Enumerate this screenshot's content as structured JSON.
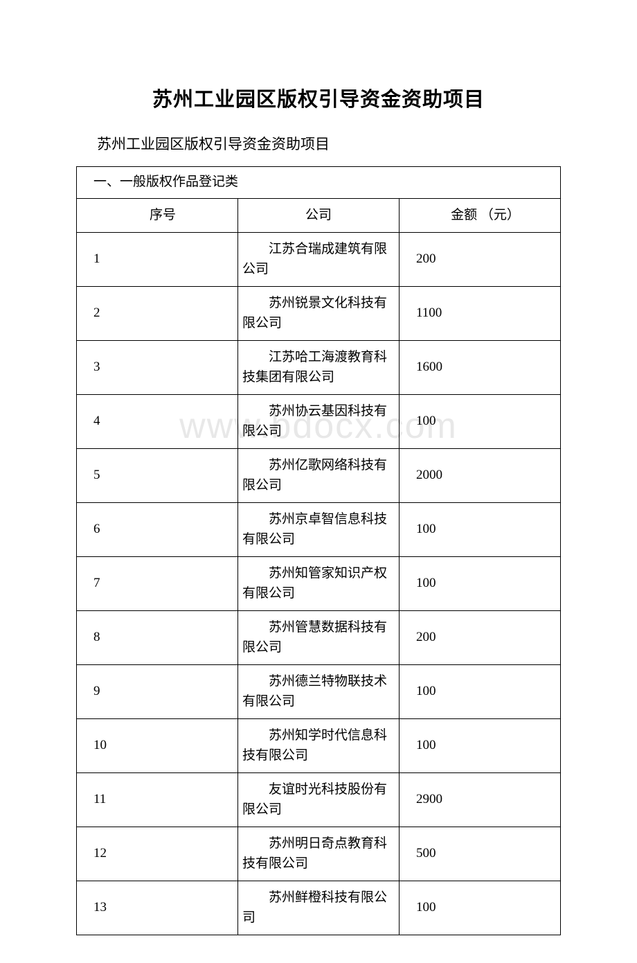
{
  "document": {
    "title": "苏州工业园区版权引导资金资助项目",
    "subtitle": "苏州工业园区版权引导资金资助项目",
    "watermark": "www.bdocx.com"
  },
  "table": {
    "section_title": "一、一般版权作品登记类",
    "headers": {
      "seq": "序号",
      "company": "公司",
      "amount": "金额 （元）"
    },
    "rows": [
      {
        "seq": "1",
        "company": "江苏合瑞成建筑有限公司",
        "amount": "200"
      },
      {
        "seq": "2",
        "company": "苏州锐景文化科技有限公司",
        "amount": "1100"
      },
      {
        "seq": "3",
        "company": "江苏哈工海渡教育科技集团有限公司",
        "amount": "1600"
      },
      {
        "seq": "4",
        "company": "苏州协云基因科技有限公司",
        "amount": "100"
      },
      {
        "seq": "5",
        "company": "苏州亿歌网络科技有限公司",
        "amount": "2000"
      },
      {
        "seq": "6",
        "company": "苏州京卓智信息科技有限公司",
        "amount": "100"
      },
      {
        "seq": "7",
        "company": "苏州知管家知识产权有限公司",
        "amount": "100"
      },
      {
        "seq": "8",
        "company": "苏州管慧数据科技有限公司",
        "amount": "200"
      },
      {
        "seq": "9",
        "company": "苏州德兰特物联技术有限公司",
        "amount": "100"
      },
      {
        "seq": "10",
        "company": "苏州知学时代信息科技有限公司",
        "amount": "100"
      },
      {
        "seq": "11",
        "company": "友谊时光科技股份有限公司",
        "amount": "2900"
      },
      {
        "seq": "12",
        "company": "苏州明日奇点教育科技有限公司",
        "amount": "500"
      },
      {
        "seq": "13",
        "company": "苏州鲜橙科技有限公司",
        "amount": "100"
      }
    ]
  },
  "styles": {
    "title_fontsize": 29,
    "subtitle_fontsize": 21,
    "cell_fontsize": 19,
    "border_color": "#000000",
    "background_color": "#ffffff",
    "text_color": "#000000",
    "watermark_color": "#e8e8e8",
    "col_widths": {
      "seq": "29%",
      "company": "37%",
      "amount": "34%"
    }
  }
}
